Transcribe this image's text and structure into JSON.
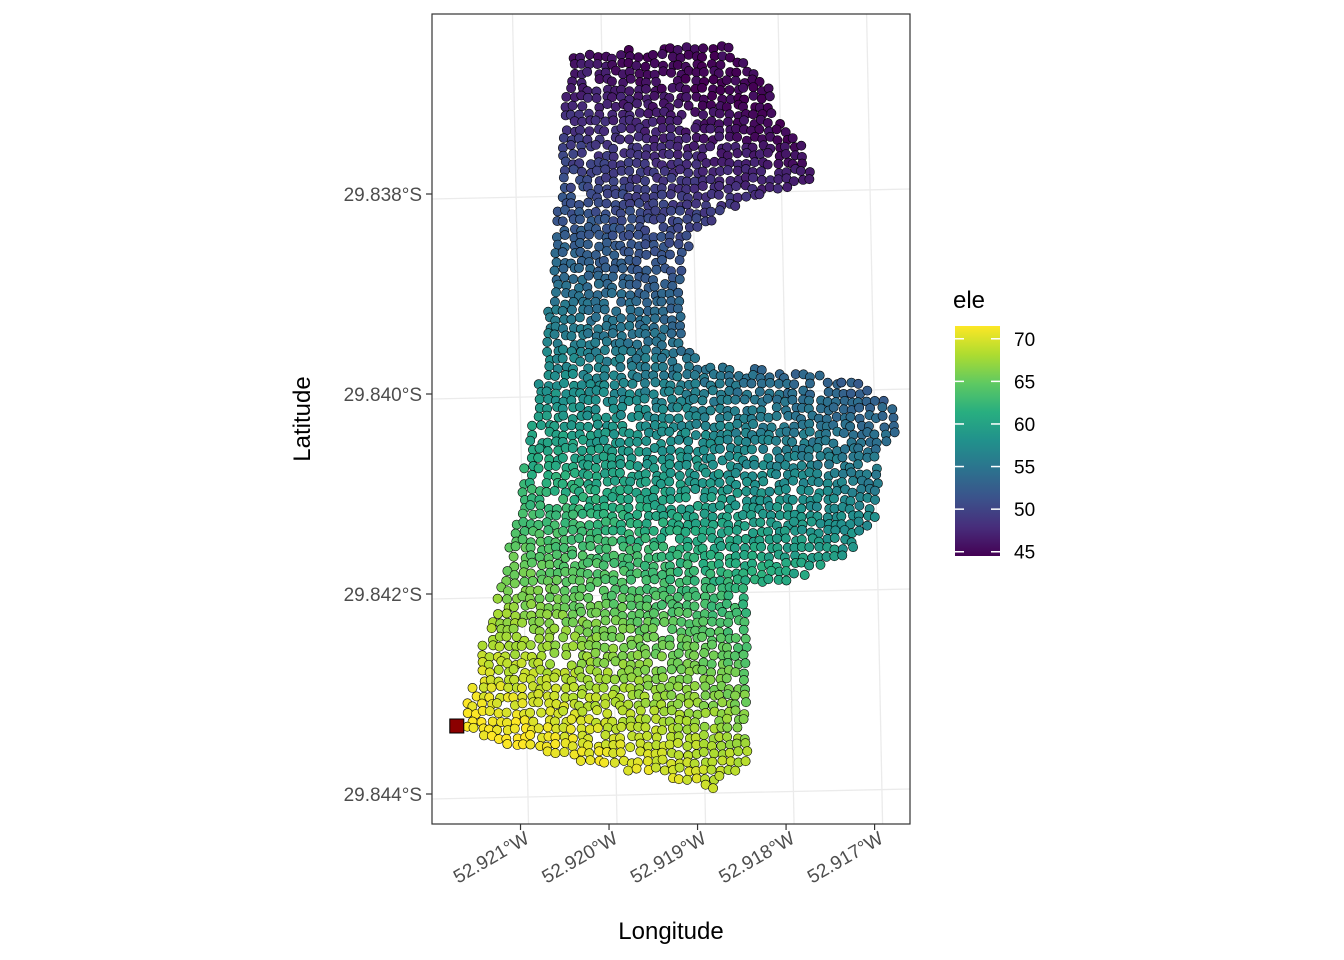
{
  "chart_data": {
    "type": "scatter",
    "subtype": "spatial-point-map",
    "xlabel": "Longitude",
    "ylabel": "Latitude",
    "x_ticks": [
      {
        "value": -52.921,
        "label": "52.921°W"
      },
      {
        "value": -52.92,
        "label": "52.920°W"
      },
      {
        "value": -52.919,
        "label": "52.919°W"
      },
      {
        "value": -52.918,
        "label": "52.918°W"
      },
      {
        "value": -52.917,
        "label": "52.917°W"
      }
    ],
    "y_ticks": [
      {
        "value": -29.838,
        "label": "29.838°S"
      },
      {
        "value": -29.84,
        "label": "29.840°S"
      },
      {
        "value": -29.842,
        "label": "29.842°S"
      },
      {
        "value": -29.844,
        "label": "29.844°S"
      }
    ],
    "xlim": [
      -52.922,
      -52.9166
    ],
    "ylim": [
      -29.8443,
      -29.8362
    ],
    "grid": true,
    "legend": {
      "title": "ele",
      "placement": "right",
      "palette": "viridis",
      "range": [
        44.5,
        71.5
      ],
      "ticks": [
        {
          "value": 70,
          "label": "70"
        },
        {
          "value": 65,
          "label": "65"
        },
        {
          "value": 60,
          "label": "60"
        },
        {
          "value": 55,
          "label": "55"
        },
        {
          "value": 50,
          "label": "50"
        },
        {
          "value": 45,
          "label": "45"
        }
      ]
    },
    "field_boundary": [
      [
        -52.92045,
        -29.83659
      ],
      [
        -52.91865,
        -29.83648
      ],
      [
        -52.9182,
        -29.83688
      ],
      [
        -52.91805,
        -29.83733
      ],
      [
        -52.91775,
        -29.83755
      ],
      [
        -52.91765,
        -29.83787
      ],
      [
        -52.9185,
        -29.83808
      ],
      [
        -52.91905,
        -29.8384
      ],
      [
        -52.9192,
        -29.83885
      ],
      [
        -52.91918,
        -29.8394
      ],
      [
        -52.91895,
        -29.8397
      ],
      [
        -52.91775,
        -29.83978
      ],
      [
        -52.91715,
        -29.8399
      ],
      [
        -52.9166,
        -29.84022
      ],
      [
        -52.9169,
        -29.84058
      ],
      [
        -52.917,
        -29.84125
      ],
      [
        -52.9173,
        -29.8416
      ],
      [
        -52.918,
        -29.8419
      ],
      [
        -52.9184,
        -29.84192
      ],
      [
        -52.9184,
        -29.84363
      ],
      [
        -52.9188,
        -29.84395
      ],
      [
        -52.92125,
        -29.8435
      ],
      [
        -52.92163,
        -29.84338
      ],
      [
        -52.9216,
        -29.84305
      ],
      [
        -52.9211,
        -29.84145
      ],
      [
        -52.9208,
        -29.8399
      ],
      [
        -52.9206,
        -29.8384
      ],
      [
        -52.9205,
        -29.8372
      ]
    ],
    "elevation_gradient": {
      "min_value": 45,
      "min_location": [
        -52.91815,
        -29.8373
      ],
      "max_value": 71.5,
      "max_location": [
        -52.9215,
        -29.8433
      ]
    },
    "marker": {
      "shape": "square",
      "color": "#8B0000",
      "x": -52.92172,
      "y": -29.84332
    },
    "colors": {
      "panel_border": "#333333",
      "grid": "#ebebeb",
      "tick": "#333333",
      "point_stroke": "#000000"
    }
  }
}
